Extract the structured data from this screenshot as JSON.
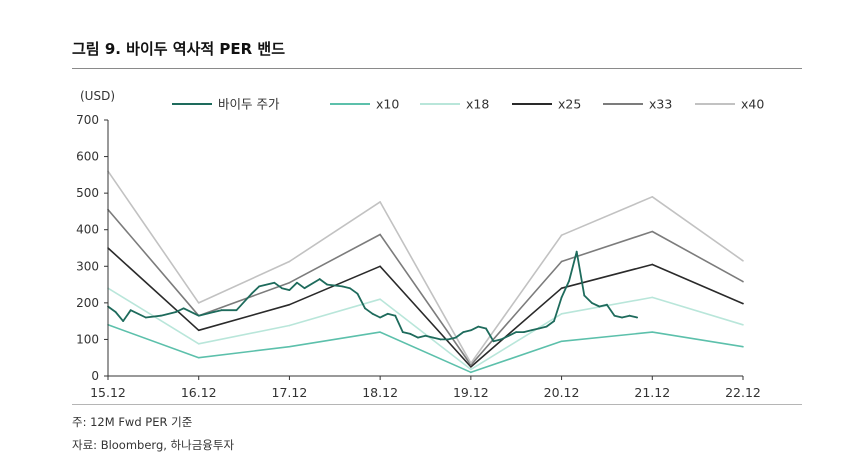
{
  "figure": {
    "title": "그림 9. 바이두 역사적 PER 밴드",
    "note": "주: 12M Fwd PER 기준",
    "source": "자료: Bloomberg, 하나금융투자"
  },
  "colors": {
    "price": "#1e6b5c",
    "x10": "#5cc0ab",
    "x18": "#b9e6da",
    "x25": "#2a2a2a",
    "x33": "#7c7c7c",
    "x40": "#c2c2c2",
    "axis": "#333333"
  },
  "chart_data": {
    "type": "line",
    "unit_label": "(USD)",
    "ylim": [
      0,
      700
    ],
    "yticks": [
      0,
      100,
      200,
      300,
      400,
      500,
      600,
      700
    ],
    "xlim": [
      "2015-12",
      "2022-12"
    ],
    "xtick_labels": [
      "15.12",
      "16.12",
      "17.12",
      "18.12",
      "19.12",
      "20.12",
      "21.12",
      "22.12"
    ],
    "legend_position": "top",
    "band_x": [
      "2015-12",
      "2016-12",
      "2017-12",
      "2018-12",
      "2019-12",
      "2020-12",
      "2021-12",
      "2022-12"
    ],
    "series": [
      {
        "name": "바이두 주가",
        "color_key": "price",
        "x": [
          "2015-12",
          "2016-01",
          "2016-02",
          "2016-03",
          "2016-05",
          "2016-07",
          "2016-09",
          "2016-10",
          "2016-12",
          "2017-02",
          "2017-03",
          "2017-05",
          "2017-07",
          "2017-08",
          "2017-10",
          "2017-11",
          "2017-12",
          "2018-01",
          "2018-02",
          "2018-04",
          "2018-05",
          "2018-07",
          "2018-08",
          "2018-09",
          "2018-10",
          "2018-11",
          "2018-12",
          "2019-01",
          "2019-02",
          "2019-03",
          "2019-04",
          "2019-05",
          "2019-06",
          "2019-07",
          "2019-08",
          "2019-09",
          "2019-10",
          "2019-11",
          "2019-12",
          "2020-01",
          "2020-02",
          "2020-03",
          "2020-04",
          "2020-05",
          "2020-06",
          "2020-07",
          "2020-08",
          "2020-09",
          "2020-10",
          "2020-11",
          "2020-12",
          "2021-01",
          "2021-02",
          "2021-03",
          "2021-04",
          "2021-05",
          "2021-06",
          "2021-07",
          "2021-08",
          "2021-09",
          "2021-10"
        ],
        "values": [
          190,
          175,
          150,
          180,
          160,
          165,
          175,
          185,
          165,
          175,
          180,
          180,
          225,
          245,
          255,
          240,
          235,
          255,
          240,
          265,
          250,
          245,
          240,
          225,
          185,
          170,
          160,
          170,
          165,
          120,
          115,
          105,
          110,
          105,
          100,
          100,
          105,
          120,
          125,
          135,
          130,
          95,
          100,
          110,
          120,
          120,
          125,
          130,
          135,
          150,
          215,
          260,
          340,
          220,
          200,
          190,
          195,
          165,
          160,
          165,
          160
        ]
      },
      {
        "name": "x10",
        "color_key": "x10",
        "values": [
          140,
          50,
          80,
          120,
          10,
          95,
          120,
          80
        ]
      },
      {
        "name": "x18",
        "color_key": "x18",
        "values": [
          240,
          88,
          138,
          210,
          18,
          170,
          215,
          140
        ]
      },
      {
        "name": "x25",
        "color_key": "x25",
        "values": [
          350,
          125,
          195,
          300,
          25,
          240,
          305,
          198
        ]
      },
      {
        "name": "x33",
        "color_key": "x33",
        "values": [
          455,
          165,
          255,
          387,
          30,
          313,
          395,
          258
        ]
      },
      {
        "name": "x40",
        "color_key": "x40",
        "values": [
          560,
          200,
          313,
          476,
          35,
          385,
          490,
          315
        ]
      }
    ]
  }
}
